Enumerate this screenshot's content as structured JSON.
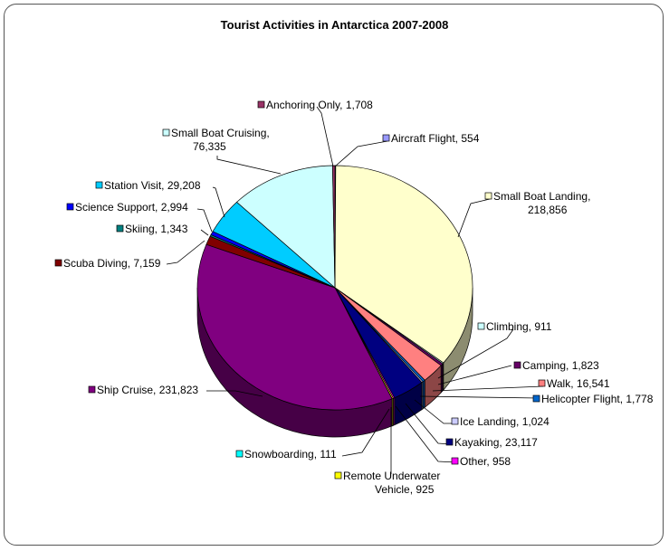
{
  "chart_data": {
    "type": "pie",
    "title": "Tourist Activities in Antarctica 2007-2008",
    "slices": [
      {
        "label": "Aircraft Flight",
        "value": 554,
        "color": "#9999ff",
        "text": "Aircraft Flight, 554"
      },
      {
        "label": "Small Boat Landing",
        "value": 218856,
        "color": "#ffffcc",
        "text": "Small Boat Landing,|218,856"
      },
      {
        "label": "Climbing",
        "value": 911,
        "color": "#ccffff",
        "text": "Climbing, 911"
      },
      {
        "label": "Camping",
        "value": 1823,
        "color": "#660066",
        "text": "Camping, 1,823"
      },
      {
        "label": "Walk",
        "value": 16541,
        "color": "#ff8080",
        "text": "Walk, 16,541"
      },
      {
        "label": "Helicopter Flight",
        "value": 1778,
        "color": "#0066cc",
        "text": "Helicopter Flight, 1,778"
      },
      {
        "label": "Ice Landing",
        "value": 1024,
        "color": "#ccccff",
        "text": "Ice Landing, 1,024"
      },
      {
        "label": "Kayaking",
        "value": 23117,
        "color": "#000080",
        "text": "Kayaking, 23,117"
      },
      {
        "label": "Other",
        "value": 958,
        "color": "#ff00ff",
        "text": "Other, 958"
      },
      {
        "label": "Remote Underwater Vehicle",
        "value": 925,
        "color": "#ffff00",
        "text": "Remote Underwater|Vehicle, 925"
      },
      {
        "label": "Snowboarding",
        "value": 111,
        "color": "#00ffff",
        "text": "Snowboarding, 111"
      },
      {
        "label": "Ship Cruise",
        "value": 231823,
        "color": "#800080",
        "text": "Ship Cruise, 231,823"
      },
      {
        "label": "Scuba Diving",
        "value": 7159,
        "color": "#800000",
        "text": "Scuba Diving, 7,159"
      },
      {
        "label": "Skiing",
        "value": 1343,
        "color": "#008080",
        "text": "Skiing, 1,343"
      },
      {
        "label": "Science Support",
        "value": 2994,
        "color": "#0000ff",
        "text": "Science Support, 2,994"
      },
      {
        "label": "Station Visit",
        "value": 29208,
        "color": "#00ccff",
        "text": "Station Visit, 29,208"
      },
      {
        "label": "Small Boat Cruising",
        "value": 76335,
        "color": "#ccffff",
        "text": "Small Boat Cruising,|76,335"
      },
      {
        "label": "Anchoring Only",
        "value": 1708,
        "color": "#993366",
        "text": "Anchoring Only, 1,708"
      }
    ]
  }
}
